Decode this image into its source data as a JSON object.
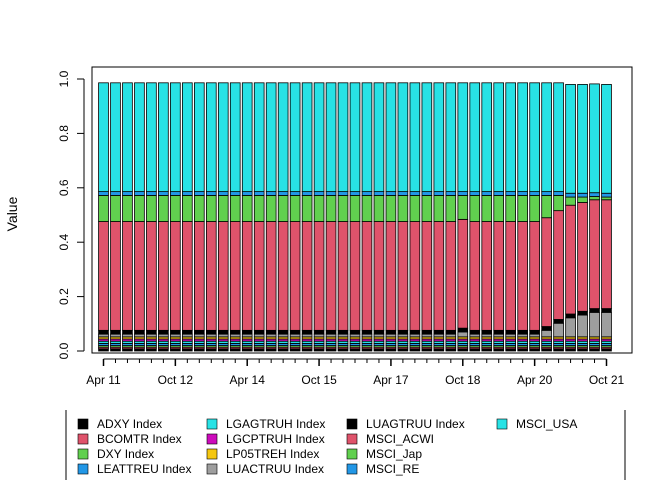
{
  "chart_data": {
    "type": "bar",
    "stacked": true,
    "title": "",
    "xlabel": "",
    "ylabel": "Value",
    "ylim": [
      0,
      1
    ],
    "y_ticks": [
      "0.0",
      "0.2",
      "0.4",
      "0.6",
      "0.8",
      "1.0"
    ],
    "x_tick_labels": [
      "Apr 11",
      "Oct 12",
      "Apr 14",
      "Oct 15",
      "Apr 17",
      "Oct 18",
      "Apr 20",
      "Oct 21"
    ],
    "x_tick_bar_index": [
      0,
      6,
      12,
      18,
      24,
      30,
      36,
      42
    ],
    "n_bars": 43,
    "legend_position": "bottom",
    "series": [
      {
        "name": "ADXY Index",
        "color": "#000000",
        "values": [
          0.008,
          0.008,
          0.008,
          0.008,
          0.008,
          0.008,
          0.008,
          0.008,
          0.008,
          0.008,
          0.008,
          0.008,
          0.008,
          0.008,
          0.008,
          0.008,
          0.008,
          0.008,
          0.008,
          0.008,
          0.008,
          0.008,
          0.008,
          0.008,
          0.008,
          0.008,
          0.008,
          0.008,
          0.008,
          0.008,
          0.008,
          0.008,
          0.008,
          0.008,
          0.008,
          0.008,
          0.008,
          0.008,
          0.008,
          0.008,
          0.008,
          0.008,
          0.008
        ]
      },
      {
        "name": "BCOMTR Index",
        "color": "#DF536B",
        "values": [
          0.006,
          0.006,
          0.006,
          0.006,
          0.006,
          0.006,
          0.006,
          0.006,
          0.006,
          0.006,
          0.006,
          0.006,
          0.006,
          0.006,
          0.006,
          0.006,
          0.006,
          0.006,
          0.006,
          0.006,
          0.006,
          0.006,
          0.006,
          0.006,
          0.006,
          0.006,
          0.006,
          0.006,
          0.006,
          0.006,
          0.006,
          0.006,
          0.006,
          0.006,
          0.006,
          0.006,
          0.006,
          0.006,
          0.006,
          0.006,
          0.006,
          0.006,
          0.006
        ]
      },
      {
        "name": "DXY Index",
        "color": "#61D04F",
        "values": [
          0.006,
          0.006,
          0.006,
          0.006,
          0.006,
          0.006,
          0.006,
          0.006,
          0.006,
          0.006,
          0.006,
          0.006,
          0.006,
          0.006,
          0.006,
          0.006,
          0.006,
          0.006,
          0.006,
          0.006,
          0.006,
          0.006,
          0.006,
          0.006,
          0.006,
          0.006,
          0.006,
          0.006,
          0.006,
          0.006,
          0.006,
          0.006,
          0.006,
          0.006,
          0.006,
          0.006,
          0.006,
          0.006,
          0.006,
          0.006,
          0.006,
          0.006,
          0.006
        ]
      },
      {
        "name": "LEATTREU Index",
        "color": "#2297E6",
        "values": [
          0.008,
          0.008,
          0.008,
          0.008,
          0.008,
          0.008,
          0.008,
          0.008,
          0.008,
          0.008,
          0.008,
          0.008,
          0.008,
          0.008,
          0.008,
          0.008,
          0.008,
          0.008,
          0.008,
          0.008,
          0.008,
          0.008,
          0.008,
          0.008,
          0.008,
          0.008,
          0.008,
          0.008,
          0.008,
          0.008,
          0.008,
          0.008,
          0.008,
          0.008,
          0.008,
          0.008,
          0.008,
          0.008,
          0.008,
          0.008,
          0.008,
          0.008,
          0.008
        ]
      },
      {
        "name": "LGAGTRUH Index",
        "color": "#28E2E5",
        "values": [
          0.008,
          0.008,
          0.008,
          0.008,
          0.008,
          0.008,
          0.008,
          0.008,
          0.008,
          0.008,
          0.008,
          0.008,
          0.008,
          0.008,
          0.008,
          0.008,
          0.008,
          0.008,
          0.008,
          0.008,
          0.008,
          0.008,
          0.008,
          0.008,
          0.008,
          0.008,
          0.008,
          0.008,
          0.008,
          0.008,
          0.008,
          0.008,
          0.008,
          0.008,
          0.008,
          0.008,
          0.008,
          0.008,
          0.008,
          0.008,
          0.008,
          0.008,
          0.008
        ]
      },
      {
        "name": "LGCPTRUH Index",
        "color": "#CD0BBC",
        "values": [
          0.008,
          0.008,
          0.008,
          0.008,
          0.008,
          0.008,
          0.008,
          0.008,
          0.008,
          0.008,
          0.008,
          0.008,
          0.008,
          0.008,
          0.008,
          0.008,
          0.008,
          0.008,
          0.008,
          0.008,
          0.008,
          0.008,
          0.008,
          0.008,
          0.008,
          0.008,
          0.008,
          0.008,
          0.008,
          0.008,
          0.008,
          0.008,
          0.008,
          0.008,
          0.008,
          0.008,
          0.008,
          0.008,
          0.008,
          0.008,
          0.008,
          0.008,
          0.008
        ]
      },
      {
        "name": "LP05TREH Index",
        "color": "#F5C710",
        "values": [
          0.008,
          0.008,
          0.008,
          0.008,
          0.008,
          0.008,
          0.008,
          0.008,
          0.008,
          0.008,
          0.008,
          0.008,
          0.008,
          0.008,
          0.008,
          0.008,
          0.008,
          0.008,
          0.008,
          0.008,
          0.008,
          0.008,
          0.008,
          0.008,
          0.008,
          0.008,
          0.008,
          0.008,
          0.008,
          0.008,
          0.008,
          0.008,
          0.008,
          0.008,
          0.008,
          0.008,
          0.008,
          0.008,
          0.008,
          0.008,
          0.008,
          0.008,
          0.008
        ]
      },
      {
        "name": "LUACTRUU Index",
        "color": "#9E9E9E",
        "values": [
          0.01,
          0.01,
          0.01,
          0.01,
          0.01,
          0.01,
          0.01,
          0.01,
          0.01,
          0.01,
          0.01,
          0.01,
          0.01,
          0.01,
          0.01,
          0.01,
          0.01,
          0.01,
          0.01,
          0.01,
          0.01,
          0.01,
          0.01,
          0.01,
          0.01,
          0.01,
          0.01,
          0.01,
          0.01,
          0.01,
          0.018,
          0.01,
          0.01,
          0.01,
          0.01,
          0.01,
          0.01,
          0.024,
          0.05,
          0.07,
          0.08,
          0.09,
          0.09
        ]
      },
      {
        "name": "LUAGTRUU Index",
        "color": "#000000",
        "values": [
          0.014,
          0.014,
          0.014,
          0.014,
          0.014,
          0.014,
          0.014,
          0.014,
          0.014,
          0.014,
          0.014,
          0.014,
          0.014,
          0.014,
          0.014,
          0.014,
          0.014,
          0.014,
          0.014,
          0.014,
          0.014,
          0.014,
          0.014,
          0.014,
          0.014,
          0.014,
          0.014,
          0.014,
          0.014,
          0.014,
          0.014,
          0.014,
          0.014,
          0.014,
          0.014,
          0.014,
          0.014,
          0.014,
          0.014,
          0.014,
          0.014,
          0.014,
          0.014
        ]
      },
      {
        "name": "MSCI_ACWI",
        "color": "#DF536B",
        "values": [
          0.4,
          0.4,
          0.4,
          0.4,
          0.4,
          0.4,
          0.4,
          0.4,
          0.4,
          0.4,
          0.4,
          0.4,
          0.4,
          0.4,
          0.4,
          0.4,
          0.4,
          0.4,
          0.4,
          0.4,
          0.4,
          0.4,
          0.4,
          0.4,
          0.4,
          0.4,
          0.4,
          0.4,
          0.4,
          0.4,
          0.4,
          0.4,
          0.4,
          0.4,
          0.4,
          0.4,
          0.4,
          0.4,
          0.4,
          0.4,
          0.4,
          0.4,
          0.4
        ]
      },
      {
        "name": "MSCI_Jap",
        "color": "#61D04F",
        "values": [
          0.096,
          0.096,
          0.096,
          0.096,
          0.096,
          0.096,
          0.096,
          0.096,
          0.096,
          0.096,
          0.096,
          0.096,
          0.096,
          0.096,
          0.096,
          0.096,
          0.096,
          0.096,
          0.096,
          0.096,
          0.096,
          0.096,
          0.096,
          0.096,
          0.096,
          0.096,
          0.096,
          0.096,
          0.096,
          0.096,
          0.088,
          0.096,
          0.096,
          0.096,
          0.096,
          0.096,
          0.096,
          0.082,
          0.056,
          0.03,
          0.02,
          0.012,
          0.01
        ]
      },
      {
        "name": "MSCI_RE",
        "color": "#2297E6",
        "values": [
          0.014,
          0.014,
          0.014,
          0.014,
          0.014,
          0.014,
          0.014,
          0.014,
          0.014,
          0.014,
          0.014,
          0.014,
          0.014,
          0.014,
          0.014,
          0.014,
          0.014,
          0.014,
          0.014,
          0.014,
          0.014,
          0.014,
          0.014,
          0.014,
          0.014,
          0.014,
          0.014,
          0.014,
          0.014,
          0.014,
          0.014,
          0.014,
          0.014,
          0.014,
          0.014,
          0.014,
          0.014,
          0.014,
          0.014,
          0.014,
          0.014,
          0.014,
          0.014
        ]
      },
      {
        "name": "MSCI_USA",
        "color": "#28E2E5",
        "values": [
          0.4,
          0.4,
          0.4,
          0.4,
          0.4,
          0.4,
          0.4,
          0.4,
          0.4,
          0.4,
          0.4,
          0.4,
          0.4,
          0.4,
          0.4,
          0.4,
          0.4,
          0.4,
          0.4,
          0.4,
          0.4,
          0.4,
          0.4,
          0.4,
          0.4,
          0.4,
          0.4,
          0.4,
          0.4,
          0.4,
          0.4,
          0.4,
          0.4,
          0.4,
          0.4,
          0.4,
          0.4,
          0.4,
          0.4,
          0.4,
          0.4,
          0.4,
          0.4
        ]
      }
    ]
  }
}
